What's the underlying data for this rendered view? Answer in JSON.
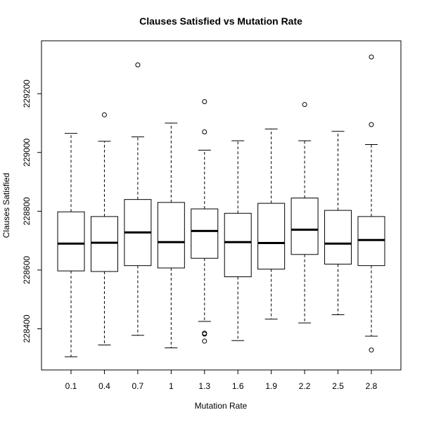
{
  "chart_data": {
    "type": "box",
    "title": "Clauses Satisfied vs Mutation Rate",
    "xlabel": "Mutation Rate",
    "ylabel": "Clauses Satisfied",
    "categories": [
      "0.1",
      "0.4",
      "0.7",
      "1",
      "1.3",
      "1.6",
      "1.9",
      "2.2",
      "2.5",
      "2.8"
    ],
    "ylim": [
      228260,
      229380
    ],
    "yticks": [
      228400,
      228600,
      228800,
      229000,
      229200
    ],
    "boxes": [
      {
        "min": 228305,
        "q1": 228597,
        "median": 228690,
        "q3": 228798,
        "max": 229065,
        "outliers": []
      },
      {
        "min": 228345,
        "q1": 228595,
        "median": 228693,
        "q3": 228782,
        "max": 229038,
        "outliers": [
          229128
        ]
      },
      {
        "min": 228378,
        "q1": 228615,
        "median": 228728,
        "q3": 228840,
        "max": 229053,
        "outliers": [
          229298
        ]
      },
      {
        "min": 228335,
        "q1": 228607,
        "median": 228695,
        "q3": 228830,
        "max": 229100,
        "outliers": []
      },
      {
        "min": 228425,
        "q1": 228640,
        "median": 228733,
        "q3": 228808,
        "max": 229008,
        "outliers": [
          229173,
          229070,
          228385,
          228382,
          228358
        ]
      },
      {
        "min": 228360,
        "q1": 228577,
        "median": 228695,
        "q3": 228793,
        "max": 229040,
        "outliers": []
      },
      {
        "min": 228433,
        "q1": 228603,
        "median": 228692,
        "q3": 228827,
        "max": 229080,
        "outliers": []
      },
      {
        "min": 228420,
        "q1": 228653,
        "median": 228737,
        "q3": 228845,
        "max": 229040,
        "outliers": [
          229163
        ]
      },
      {
        "min": 228448,
        "q1": 228620,
        "median": 228690,
        "q3": 228803,
        "max": 229072,
        "outliers": []
      },
      {
        "min": 228375,
        "q1": 228615,
        "median": 228702,
        "q3": 228782,
        "max": 229027,
        "outliers": [
          229325,
          229095,
          228328
        ]
      }
    ]
  }
}
